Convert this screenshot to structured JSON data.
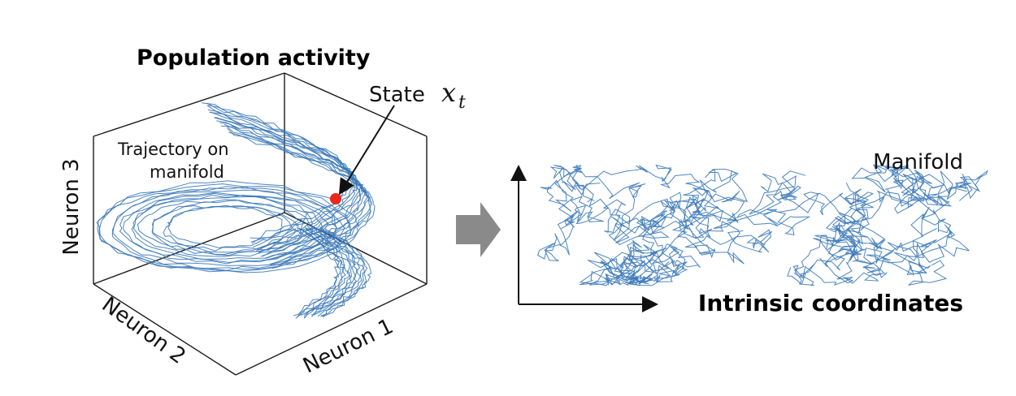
{
  "left_panel": {
    "title": "Population activity",
    "state_label": "State",
    "state_var": "x",
    "state_sub": "t",
    "trajectory_line1": "Trajectory on",
    "trajectory_line2": "manifold",
    "axis_neuron1": "Neuron 1",
    "axis_neuron2": "Neuron 2",
    "axis_neuron3": "Neuron 3"
  },
  "right_panel": {
    "manifold_label": "Manifold",
    "coords_label": "Intrinsic coordinates"
  },
  "colors": {
    "trajectory": "#3a78b8",
    "state_point": "#e8291c",
    "arrow": "#8a8a8a",
    "axes": "#1a1a1a"
  }
}
